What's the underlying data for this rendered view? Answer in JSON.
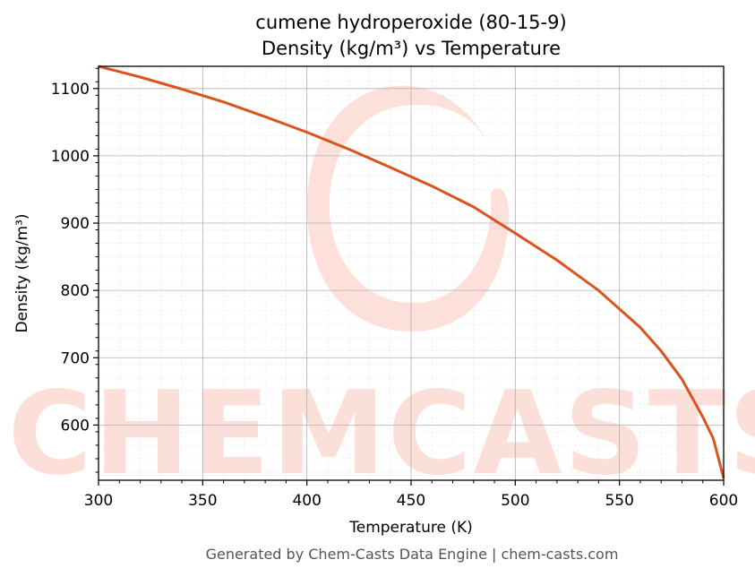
{
  "chart_data": {
    "type": "line",
    "title": "cumene hydroperoxide (80-15-9)",
    "subtitle": "Density (kg/m³) vs Temperature",
    "xlabel": "Temperature (K)",
    "ylabel": "Density (kg/m³)",
    "xlim": [
      300,
      600
    ],
    "ylim": [
      518,
      1133
    ],
    "xticks": [
      300,
      350,
      400,
      450,
      500,
      550,
      600
    ],
    "yticks": [
      600,
      700,
      800,
      900,
      1000,
      1100
    ],
    "grid": true,
    "series": [
      {
        "color": "#d9541e",
        "x": [
          300,
          320,
          340,
          360,
          380,
          400,
          420,
          440,
          460,
          480,
          500,
          520,
          540,
          560,
          570,
          580,
          590,
          595,
          600
        ],
        "y": [
          1133,
          1117,
          1099,
          1080,
          1058,
          1035,
          1010,
          983,
          955,
          924,
          885,
          845,
          800,
          745,
          710,
          668,
          612,
          580,
          521
        ]
      }
    ]
  },
  "watermark": {
    "text": "CHEMCASTS",
    "color": "#fbd5cc"
  },
  "footer": "Generated by Chem-Casts Data Engine | chem-casts.com"
}
